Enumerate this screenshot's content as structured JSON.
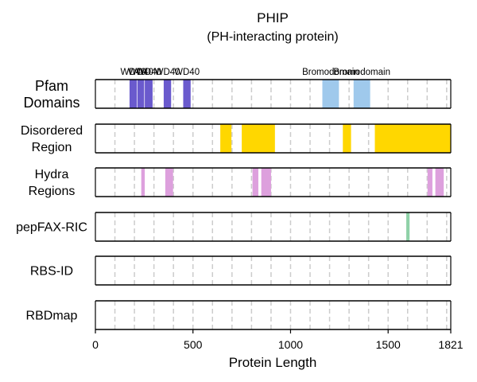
{
  "chart_data": {
    "type": "domain-track",
    "title": "PHIP",
    "subtitle": "(PH-interacting protein)",
    "xlabel": "Protein Length",
    "xlim": [
      0,
      1821
    ],
    "xticks": [
      0,
      500,
      1000,
      1500,
      1821
    ],
    "grid_positions": [
      100,
      200,
      300,
      400,
      500,
      600,
      700,
      800,
      900,
      1000,
      1100,
      1200,
      1300,
      1400,
      1500,
      1600,
      1700,
      1800
    ],
    "tracks": [
      {
        "label": [
          "Pfam",
          "Domains"
        ],
        "color": "#6a5acd",
        "segments": [
          {
            "start": 175,
            "end": 212,
            "name": "WD40",
            "color": "#6a5acd"
          },
          {
            "start": 215,
            "end": 250,
            "name": "WD40",
            "color": "#6a5acd"
          },
          {
            "start": 253,
            "end": 293,
            "name": "WD40",
            "color": "#6a5acd"
          },
          {
            "start": 350,
            "end": 388,
            "name": "WD40",
            "color": "#6a5acd"
          },
          {
            "start": 450,
            "end": 488,
            "name": "WD40",
            "color": "#6a5acd"
          },
          {
            "start": 1163,
            "end": 1248,
            "name": "Bromodomain",
            "color": "#9fc9ec"
          },
          {
            "start": 1323,
            "end": 1408,
            "name": "Bromodomain",
            "color": "#9fc9ec"
          }
        ]
      },
      {
        "label": [
          "Disordered",
          "Region"
        ],
        "color": "#ffd700",
        "segments": [
          {
            "start": 640,
            "end": 697
          },
          {
            "start": 750,
            "end": 920
          },
          {
            "start": 1268,
            "end": 1310
          },
          {
            "start": 1432,
            "end": 1821
          }
        ]
      },
      {
        "label": [
          "Hydra",
          "Regions"
        ],
        "color": "#dda0dd",
        "segments": [
          {
            "start": 235,
            "end": 253
          },
          {
            "start": 358,
            "end": 398
          },
          {
            "start": 805,
            "end": 835
          },
          {
            "start": 850,
            "end": 900
          },
          {
            "start": 1702,
            "end": 1727
          },
          {
            "start": 1742,
            "end": 1785
          }
        ]
      },
      {
        "label": [
          "pepFAX-RIC"
        ],
        "color": "#8fd1a8",
        "segments": [
          {
            "start": 1593,
            "end": 1610
          }
        ]
      },
      {
        "label": [
          "RBS-ID"
        ],
        "color": "#999999",
        "segments": []
      },
      {
        "label": [
          "RBDmap"
        ],
        "color": "#999999",
        "segments": []
      }
    ]
  }
}
